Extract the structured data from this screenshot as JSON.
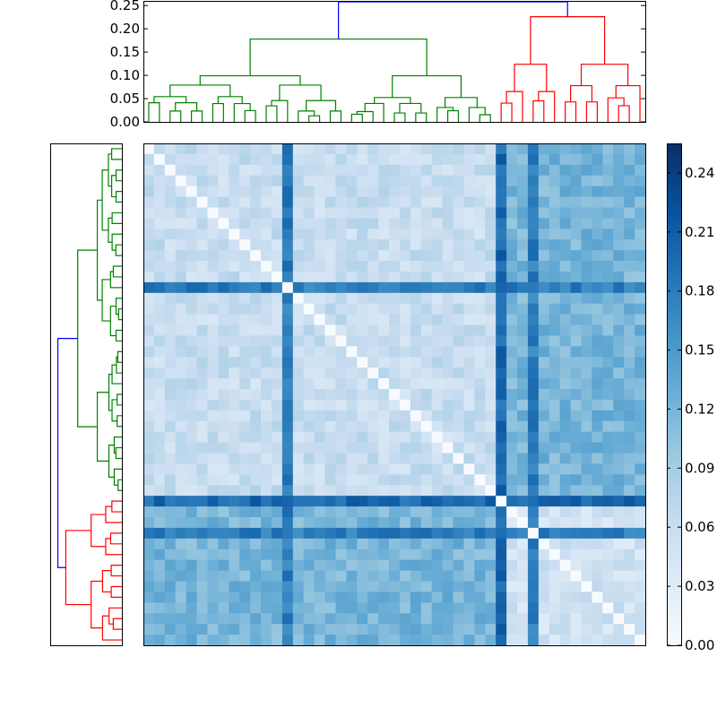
{
  "chart_data": [
    {
      "type": "dendrogram",
      "orientation": "top",
      "ylim": [
        0.0,
        0.26
      ],
      "yticks": [
        "0.00",
        "0.05",
        "0.10",
        "0.15",
        "0.20",
        "0.25"
      ],
      "leaves": 47,
      "cluster_colors": {
        "cluster_a": "#008000",
        "cluster_b": "#ff0000",
        "root": "#0000ff"
      },
      "cluster_a_leaf_count": 33,
      "cluster_b_leaf_count": 14,
      "cluster_a_merge_height": 0.178,
      "cluster_b_merge_height": 0.226,
      "root_merge_height": 0.258
    },
    {
      "type": "dendrogram",
      "orientation": "left",
      "leaves": 47,
      "cluster_colors": {
        "cluster_a": "#008000",
        "cluster_b": "#ff0000",
        "root": "#0000ff"
      }
    },
    {
      "type": "heatmap",
      "rows": 47,
      "cols": 47,
      "colormap": "Blues",
      "zlim": [
        0.0,
        0.255
      ],
      "colorbar_ticks": [
        "0.00",
        "0.03",
        "0.06",
        "0.09",
        "0.12",
        "0.15",
        "0.18",
        "0.21",
        "0.24"
      ],
      "diagonal_value": 0.0,
      "cluster_a_within": 0.06,
      "cluster_b_within": 0.05,
      "between_clusters": 0.12,
      "outlier_rows": [
        13,
        36
      ],
      "outlier_col": 33,
      "outlier_level": 0.2
    }
  ]
}
